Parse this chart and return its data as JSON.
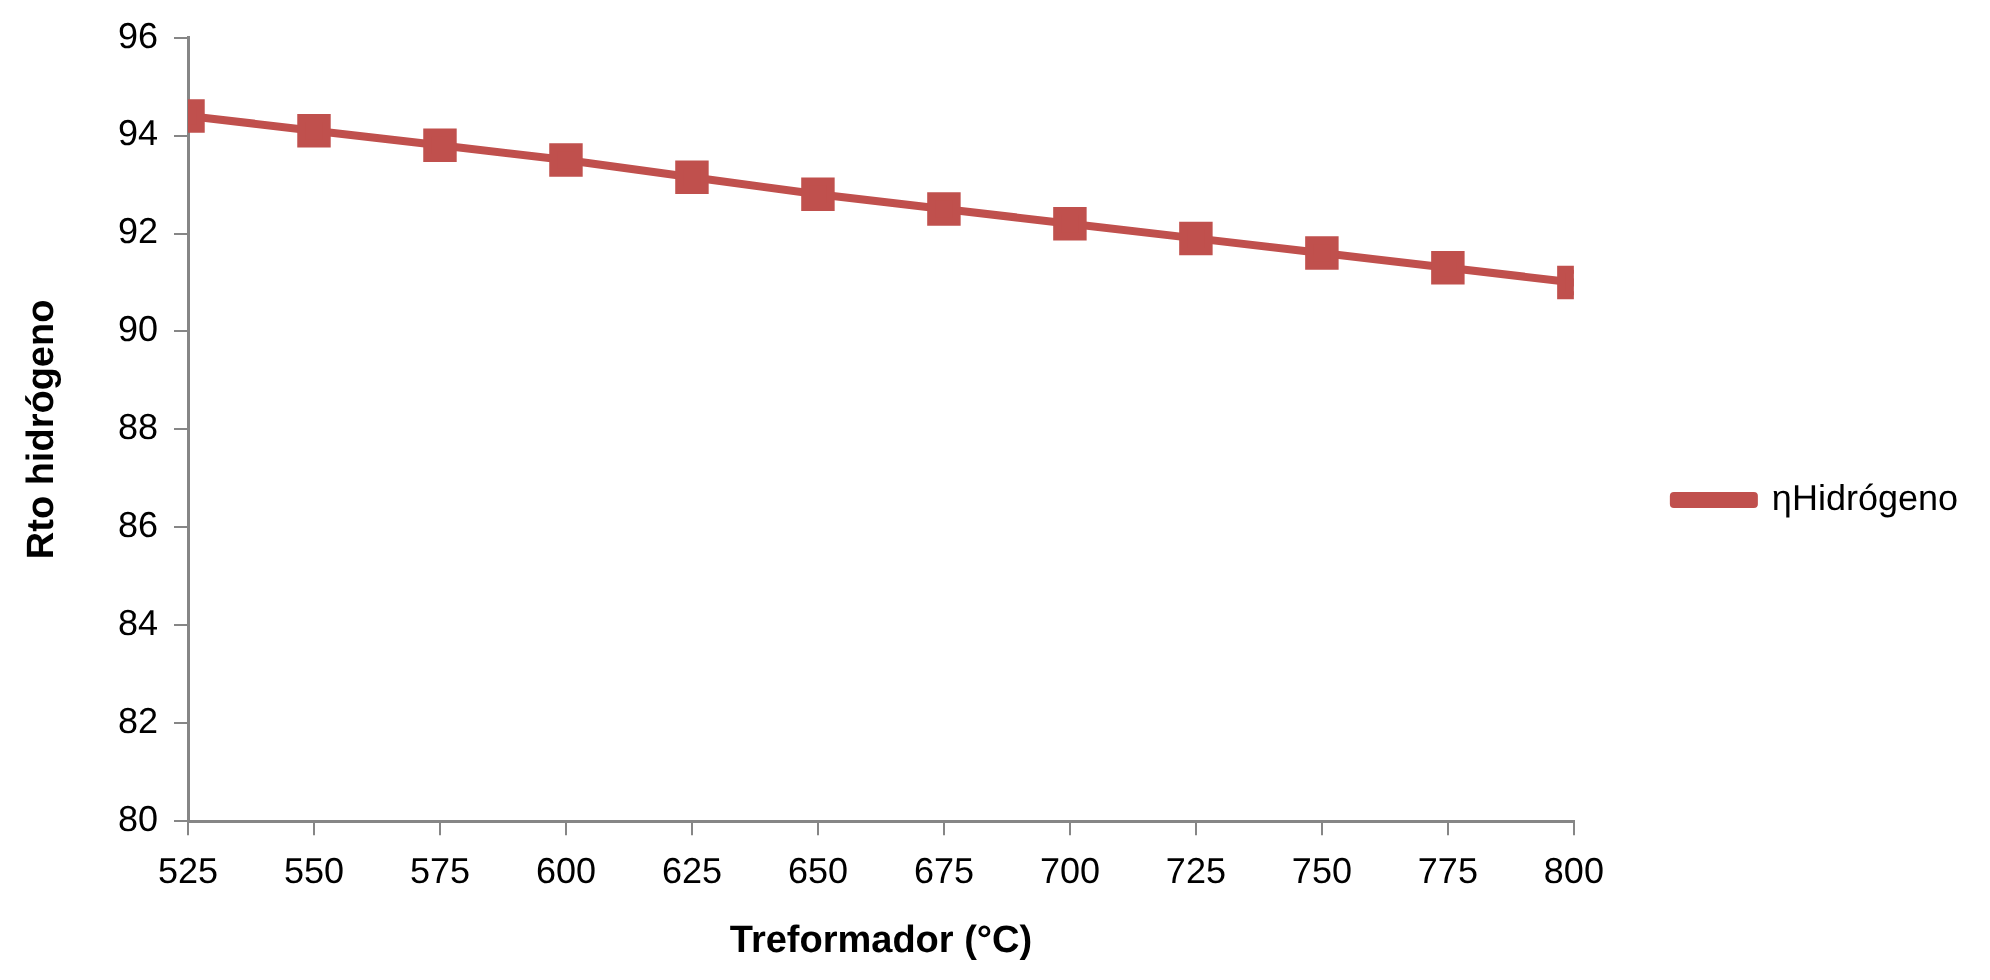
{
  "chart_data": {
    "type": "line",
    "xlabel": "Treformador (°C)",
    "ylabel": "Rto hidrógeno",
    "x": [
      525,
      550,
      575,
      600,
      625,
      650,
      675,
      700,
      725,
      750,
      775,
      800
    ],
    "series": [
      {
        "name": "ηHidrógeno",
        "color": "#c0504d",
        "values": [
          94.4,
          94.1,
          93.8,
          93.5,
          93.15,
          92.8,
          92.5,
          92.2,
          91.9,
          91.6,
          91.3,
          91.0
        ]
      }
    ],
    "xlim": [
      525,
      800
    ],
    "xticks": [
      525,
      550,
      575,
      600,
      625,
      650,
      675,
      700,
      725,
      750,
      775,
      800
    ],
    "ylim": [
      80,
      96
    ],
    "yticks": [
      80,
      82,
      84,
      86,
      88,
      90,
      92,
      94,
      96
    ],
    "grid": false,
    "legend": "right",
    "marker": "square",
    "line_style": "solid"
  }
}
